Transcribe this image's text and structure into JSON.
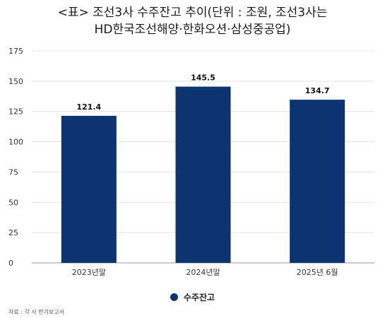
{
  "title": {
    "line1": "<표> 조선3사 수주잔고 추이(단위 : 조원, 조선3사는",
    "line2": "HD한국조선해양·한화오션·삼성중공업)"
  },
  "source": "자료 : 각 사 반기보고서",
  "colors": {
    "bar": "#0d3470",
    "grid": "#e3e3e3",
    "axis": "#9a9a9a"
  },
  "chart_data": {
    "type": "bar",
    "categories": [
      "2023년말",
      "2024년말",
      "2025년 6월"
    ],
    "series": [
      {
        "name": "수주잔고",
        "values": [
          121.4,
          145.5,
          134.7
        ],
        "labels": [
          "121.4",
          "145.5",
          "134.7"
        ]
      }
    ],
    "ylim": [
      0,
      175
    ],
    "yticks": [
      0,
      25,
      50,
      75,
      100,
      125,
      150,
      175
    ],
    "grid": true,
    "legend": "bottom"
  }
}
